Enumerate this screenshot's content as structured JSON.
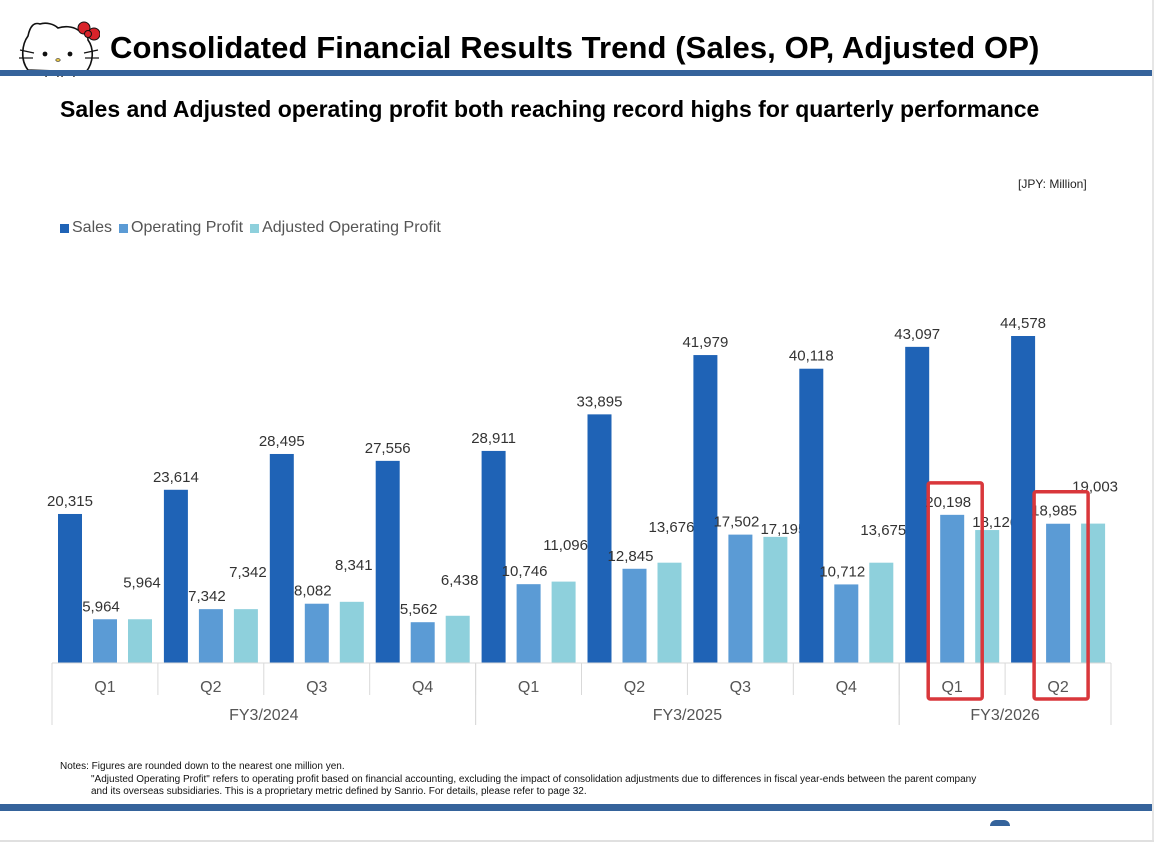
{
  "header": {
    "logo_icon": "hello-kitty-logo-icon",
    "title": "Consolidated Financial Results Trend (Sales, OP, Adjusted OP)",
    "subtitle": "Sales and Adjusted operating profit both reaching record highs for quarterly performance"
  },
  "unit_label": "[JPY: Million]",
  "colors": {
    "sales": "#1f63b6",
    "operating_profit": "#5b9bd5",
    "adjusted_operating_profit": "#8ed0dc",
    "highlight": "#d9373b",
    "rule": "#35639b"
  },
  "chart_data": {
    "type": "bar",
    "title": "Consolidated Financial Results Trend (Sales, OP, Adjusted OP)",
    "xlabel": "",
    "ylabel": "",
    "unit": "JPY Million",
    "grid": false,
    "legend_position": "top-left",
    "ylim": [
      0,
      45000
    ],
    "categories": [
      "Q1",
      "Q2",
      "Q3",
      "Q4",
      "Q1",
      "Q2",
      "Q3",
      "Q4",
      "Q1",
      "Q2"
    ],
    "groups": [
      {
        "label": "FY3/2024",
        "count": 4
      },
      {
        "label": "FY3/2025",
        "count": 4
      },
      {
        "label": "FY3/2026",
        "count": 2
      }
    ],
    "series": [
      {
        "name": "Sales",
        "values": [
          20315,
          23614,
          28495,
          27556,
          28911,
          33895,
          41979,
          40118,
          43097,
          44578
        ]
      },
      {
        "name": "Operating Profit",
        "values": [
          5964,
          7342,
          8082,
          5562,
          10746,
          12845,
          17502,
          10712,
          20198,
          18985
        ]
      },
      {
        "name": "Adjusted Operating Profit",
        "values": [
          5964,
          7342,
          8341,
          6438,
          11096,
          13676,
          17195,
          13675,
          18126,
          19003
        ]
      }
    ],
    "highlighted_categories": [
      8,
      9
    ]
  },
  "notes": {
    "line1": "Notes: Figures are rounded down to the nearest one million yen.",
    "line2": "\"Adjusted Operating Profit\" refers to operating profit based on financial accounting, excluding the impact of consolidation adjustments due to differences in fiscal year-ends between the parent company",
    "line3": "and its overseas subsidiaries. This is a proprietary metric defined by Sanrio. For details, please refer to page 32."
  }
}
